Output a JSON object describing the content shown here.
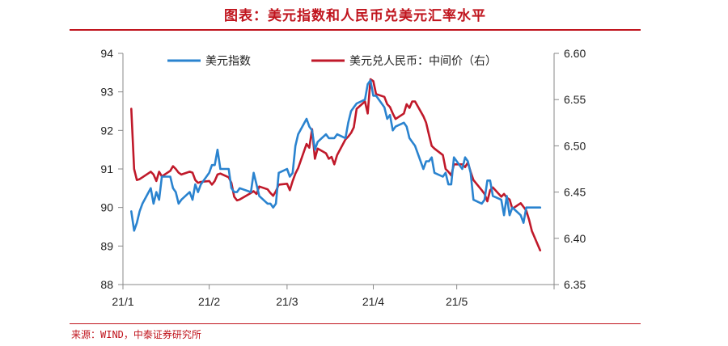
{
  "header": {
    "title": "图表：美元指数和人民币兑美元汇率水平"
  },
  "footer": {
    "source": "来源：WIND，中泰证券研究所"
  },
  "colors": {
    "accent": "#c0141d",
    "dxy": "#2a83cf",
    "cny": "#c0192a",
    "axis": "#888888"
  },
  "chart_data": {
    "type": "line",
    "title": "图表：美元指数和人民币兑美元汇率水平",
    "x_ticks": [
      "21/1",
      "21/2",
      "21/3",
      "21/4",
      "21/5"
    ],
    "x_tick_days": [
      0,
      31,
      59,
      90,
      120
    ],
    "y_left": {
      "ticks": [
        "88",
        "89",
        "90",
        "91",
        "92",
        "93",
        "94"
      ],
      "ylim": [
        88,
        94
      ]
    },
    "y_right": {
      "ticks": [
        "6.35",
        "6.40",
        "6.45",
        "6.50",
        "6.55",
        "6.60"
      ],
      "ylim": [
        6.35,
        6.6
      ]
    },
    "legend": {
      "placement": "top"
    },
    "series": [
      {
        "name": "美元指数",
        "axis": "left",
        "color": "#2a83cf",
        "points": [
          [
            "2021-01-04",
            89.9
          ],
          [
            "2021-01-05",
            89.4
          ],
          [
            "2021-01-06",
            89.6
          ],
          [
            "2021-01-07",
            89.9
          ],
          [
            "2021-01-08",
            90.1
          ],
          [
            "2021-01-11",
            90.5
          ],
          [
            "2021-01-12",
            90.1
          ],
          [
            "2021-01-13",
            90.4
          ],
          [
            "2021-01-14",
            90.2
          ],
          [
            "2021-01-15",
            90.8
          ],
          [
            "2021-01-18",
            90.8
          ],
          [
            "2021-01-19",
            90.5
          ],
          [
            "2021-01-20",
            90.4
          ],
          [
            "2021-01-21",
            90.1
          ],
          [
            "2021-01-22",
            90.2
          ],
          [
            "2021-01-25",
            90.4
          ],
          [
            "2021-01-26",
            90.2
          ],
          [
            "2021-01-27",
            90.6
          ],
          [
            "2021-01-28",
            90.4
          ],
          [
            "2021-01-29",
            90.6
          ],
          [
            "2021-02-01",
            90.9
          ],
          [
            "2021-02-02",
            91.1
          ],
          [
            "2021-02-03",
            91.1
          ],
          [
            "2021-02-04",
            91.5
          ],
          [
            "2021-02-05",
            91.0
          ],
          [
            "2021-02-08",
            91.0
          ],
          [
            "2021-02-09",
            90.5
          ],
          [
            "2021-02-10",
            90.4
          ],
          [
            "2021-02-11",
            90.4
          ],
          [
            "2021-02-12",
            90.5
          ],
          [
            "2021-02-16",
            90.4
          ],
          [
            "2021-02-17",
            90.9
          ],
          [
            "2021-02-18",
            90.6
          ],
          [
            "2021-02-19",
            90.3
          ],
          [
            "2021-02-22",
            90.1
          ],
          [
            "2021-02-23",
            90.1
          ],
          [
            "2021-02-24",
            90.0
          ],
          [
            "2021-02-25",
            90.1
          ],
          [
            "2021-02-26",
            90.9
          ],
          [
            "2021-03-01",
            91.0
          ],
          [
            "2021-03-02",
            90.8
          ],
          [
            "2021-03-03",
            90.9
          ],
          [
            "2021-03-04",
            91.6
          ],
          [
            "2021-03-05",
            91.9
          ],
          [
            "2021-03-08",
            92.3
          ],
          [
            "2021-03-09",
            92.1
          ],
          [
            "2021-03-10",
            92.0
          ],
          [
            "2021-03-11",
            91.5
          ],
          [
            "2021-03-12",
            91.7
          ],
          [
            "2021-03-15",
            91.9
          ],
          [
            "2021-03-16",
            91.8
          ],
          [
            "2021-03-17",
            91.8
          ],
          [
            "2021-03-18",
            91.8
          ],
          [
            "2021-03-19",
            91.9
          ],
          [
            "2021-03-22",
            91.8
          ],
          [
            "2021-03-23",
            92.2
          ],
          [
            "2021-03-24",
            92.5
          ],
          [
            "2021-03-25",
            92.6
          ],
          [
            "2021-03-26",
            92.7
          ],
          [
            "2021-03-29",
            92.8
          ],
          [
            "2021-03-30",
            93.2
          ],
          [
            "2021-03-31",
            93.3
          ],
          [
            "2021-04-01",
            92.9
          ],
          [
            "2021-04-02",
            92.9
          ],
          [
            "2021-04-05",
            92.6
          ],
          [
            "2021-04-06",
            92.3
          ],
          [
            "2021-04-07",
            92.4
          ],
          [
            "2021-04-08",
            92.0
          ],
          [
            "2021-04-09",
            92.1
          ],
          [
            "2021-04-12",
            92.2
          ],
          [
            "2021-04-13",
            92.1
          ],
          [
            "2021-04-14",
            91.8
          ],
          [
            "2021-04-15",
            91.7
          ],
          [
            "2021-04-16",
            91.6
          ],
          [
            "2021-04-19",
            91.0
          ],
          [
            "2021-04-20",
            91.2
          ],
          [
            "2021-04-21",
            91.2
          ],
          [
            "2021-04-22",
            91.3
          ],
          [
            "2021-04-23",
            90.9
          ],
          [
            "2021-04-26",
            90.8
          ],
          [
            "2021-04-27",
            90.9
          ],
          [
            "2021-04-28",
            90.6
          ],
          [
            "2021-04-29",
            90.6
          ],
          [
            "2021-04-30",
            91.3
          ],
          [
            "2021-05-03",
            91.0
          ],
          [
            "2021-05-04",
            91.3
          ],
          [
            "2021-05-05",
            91.2
          ],
          [
            "2021-05-06",
            90.9
          ],
          [
            "2021-05-07",
            90.2
          ],
          [
            "2021-05-10",
            90.1
          ],
          [
            "2021-05-11",
            90.2
          ],
          [
            "2021-05-12",
            90.7
          ],
          [
            "2021-05-13",
            90.7
          ],
          [
            "2021-05-14",
            90.3
          ],
          [
            "2021-05-17",
            90.2
          ],
          [
            "2021-05-18",
            89.8
          ],
          [
            "2021-05-19",
            90.3
          ],
          [
            "2021-05-20",
            89.8
          ],
          [
            "2021-05-21",
            90.0
          ],
          [
            "2021-05-24",
            89.8
          ],
          [
            "2021-05-25",
            89.6
          ],
          [
            "2021-05-26",
            90.0
          ],
          [
            "2021-05-27",
            90.0
          ],
          [
            "2021-05-28",
            90.0
          ],
          [
            "2021-05-31",
            90.0
          ]
        ]
      },
      {
        "name": "美元兑人民币：中间价（右）",
        "axis": "right",
        "color": "#c0192a",
        "points": [
          [
            "2021-01-04",
            6.54
          ],
          [
            "2021-01-05",
            6.475
          ],
          [
            "2021-01-06",
            6.463
          ],
          [
            "2021-01-07",
            6.464
          ],
          [
            "2021-01-08",
            6.466
          ],
          [
            "2021-01-11",
            6.472
          ],
          [
            "2021-01-12",
            6.469
          ],
          [
            "2021-01-13",
            6.462
          ],
          [
            "2021-01-14",
            6.472
          ],
          [
            "2021-01-15",
            6.467
          ],
          [
            "2021-01-18",
            6.473
          ],
          [
            "2021-01-19",
            6.478
          ],
          [
            "2021-01-20",
            6.475
          ],
          [
            "2021-01-21",
            6.471
          ],
          [
            "2021-01-22",
            6.469
          ],
          [
            "2021-01-25",
            6.472
          ],
          [
            "2021-01-26",
            6.471
          ],
          [
            "2021-01-27",
            6.463
          ],
          [
            "2021-01-28",
            6.46
          ],
          [
            "2021-01-29",
            6.461
          ],
          [
            "2021-02-01",
            6.462
          ],
          [
            "2021-02-02",
            6.458
          ],
          [
            "2021-02-03",
            6.462
          ],
          [
            "2021-02-04",
            6.469
          ],
          [
            "2021-02-05",
            6.47
          ],
          [
            "2021-02-08",
            6.466
          ],
          [
            "2021-02-09",
            6.46
          ],
          [
            "2021-02-10",
            6.445
          ],
          [
            "2021-02-11",
            6.441
          ],
          [
            "2021-02-12",
            6.442
          ],
          [
            "2021-02-16",
            6.449
          ],
          [
            "2021-02-17",
            6.451
          ],
          [
            "2021-02-18",
            6.448
          ],
          [
            "2021-02-19",
            6.456
          ],
          [
            "2021-02-22",
            6.453
          ],
          [
            "2021-02-23",
            6.449
          ],
          [
            "2021-02-24",
            6.446
          ],
          [
            "2021-02-25",
            6.451
          ],
          [
            "2021-02-26",
            6.458
          ],
          [
            "2021-03-01",
            6.459
          ],
          [
            "2021-03-02",
            6.452
          ],
          [
            "2021-03-03",
            6.462
          ],
          [
            "2021-03-04",
            6.47
          ],
          [
            "2021-03-05",
            6.476
          ],
          [
            "2021-03-08",
            6.502
          ],
          [
            "2021-03-09",
            6.498
          ],
          [
            "2021-03-10",
            6.518
          ],
          [
            "2021-03-11",
            6.486
          ],
          [
            "2021-03-12",
            6.497
          ],
          [
            "2021-03-15",
            6.492
          ],
          [
            "2021-03-16",
            6.486
          ],
          [
            "2021-03-17",
            6.488
          ],
          [
            "2021-03-18",
            6.48
          ],
          [
            "2021-03-19",
            6.49
          ],
          [
            "2021-03-22",
            6.507
          ],
          [
            "2021-03-23",
            6.51
          ],
          [
            "2021-03-24",
            6.514
          ],
          [
            "2021-03-25",
            6.52
          ],
          [
            "2021-03-26",
            6.54
          ],
          [
            "2021-03-29",
            6.548
          ],
          [
            "2021-03-30",
            6.535
          ],
          [
            "2021-03-31",
            6.572
          ],
          [
            "2021-04-01",
            6.57
          ],
          [
            "2021-04-02",
            6.556
          ],
          [
            "2021-04-05",
            6.553
          ],
          [
            "2021-04-06",
            6.545
          ],
          [
            "2021-04-07",
            6.542
          ],
          [
            "2021-04-08",
            6.535
          ],
          [
            "2021-04-09",
            6.529
          ],
          [
            "2021-04-12",
            6.535
          ],
          [
            "2021-04-13",
            6.545
          ],
          [
            "2021-04-14",
            6.541
          ],
          [
            "2021-04-15",
            6.548
          ],
          [
            "2021-04-16",
            6.548
          ],
          [
            "2021-04-19",
            6.532
          ],
          [
            "2021-04-20",
            6.525
          ],
          [
            "2021-04-21",
            6.512
          ],
          [
            "2021-04-22",
            6.5
          ],
          [
            "2021-04-23",
            6.497
          ],
          [
            "2021-04-26",
            6.49
          ],
          [
            "2021-04-27",
            6.475
          ],
          [
            "2021-04-28",
            6.472
          ],
          [
            "2021-04-29",
            6.468
          ],
          [
            "2021-04-30",
            6.48
          ],
          [
            "2021-05-03",
            6.48
          ],
          [
            "2021-05-04",
            6.477
          ],
          [
            "2021-05-05",
            6.482
          ],
          [
            "2021-05-06",
            6.472
          ],
          [
            "2021-05-07",
            6.463
          ],
          [
            "2021-05-10",
            6.452
          ],
          [
            "2021-05-11",
            6.448
          ],
          [
            "2021-05-12",
            6.44
          ],
          [
            "2021-05-13",
            6.452
          ],
          [
            "2021-05-14",
            6.455
          ],
          [
            "2021-05-17",
            6.445
          ],
          [
            "2021-05-18",
            6.448
          ],
          [
            "2021-05-19",
            6.444
          ],
          [
            "2021-05-20",
            6.442
          ],
          [
            "2021-05-21",
            6.432
          ],
          [
            "2021-05-24",
            6.438
          ],
          [
            "2021-05-25",
            6.434
          ],
          [
            "2021-05-26",
            6.43
          ],
          [
            "2021-05-27",
            6.42
          ],
          [
            "2021-05-28",
            6.408
          ],
          [
            "2021-05-31",
            6.387
          ]
        ]
      }
    ]
  }
}
